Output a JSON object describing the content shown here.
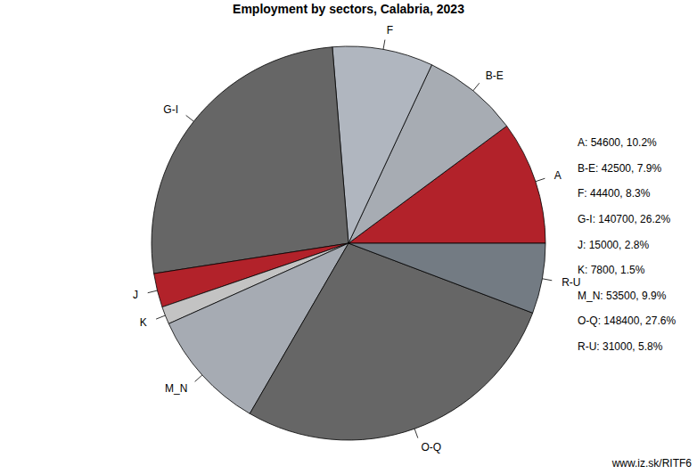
{
  "chart_data": {
    "type": "pie",
    "title": "Employment by sectors, Calabria, 2023",
    "categories": [
      "A",
      "B-E",
      "F",
      "G-I",
      "J",
      "K",
      "M_N",
      "O-Q",
      "R-U"
    ],
    "values": [
      54600,
      42500,
      44400,
      140700,
      15000,
      7800,
      53500,
      148400,
      31000
    ],
    "value_labels": [
      "A: 54600, 10.2%",
      "B-E: 42500, 7.9%",
      "F: 44400, 8.3%",
      "G-I: 140700, 26.2%",
      "J: 15000, 2.8%",
      "K: 7800, 1.5%",
      "M_N: 53500, 9.9%",
      "O-Q: 148400, 27.6%",
      "R-U: 31000, 5.8%"
    ],
    "colors": [
      "#b2222a",
      "#a7acb3",
      "#b0b6bf",
      "#666666",
      "#b2222a",
      "#c3c3c3",
      "#a6abb3",
      "#666666",
      "#737b83"
    ],
    "data_labels": false,
    "annotations": [
      "www.iz.sk/RITF6"
    ]
  }
}
